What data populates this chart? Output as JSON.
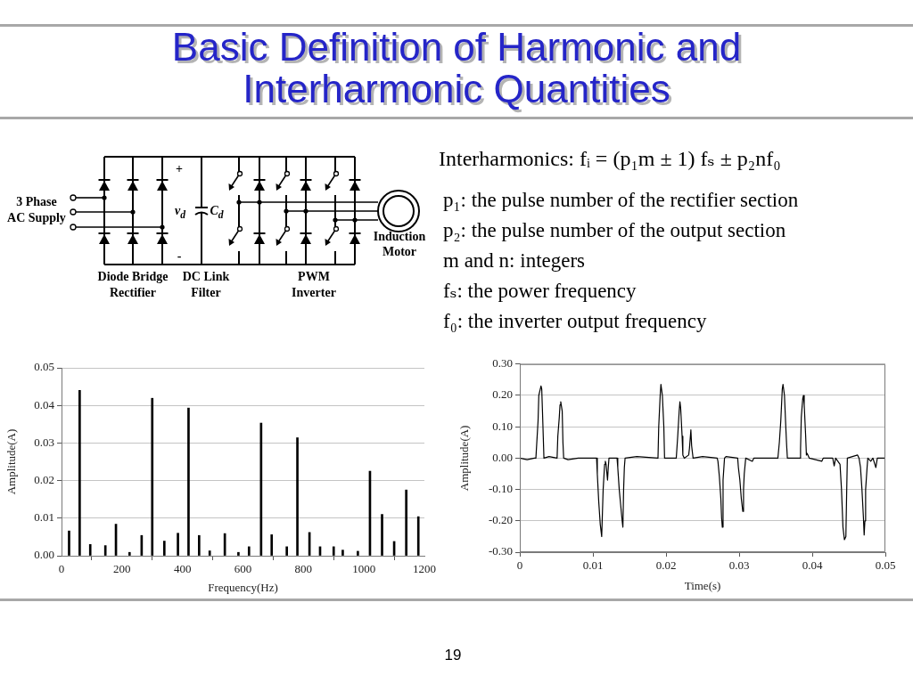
{
  "chart_data": [
    {
      "type": "other",
      "title": "Basic Definition of Harmonic and Interharmonic Quantities",
      "annotations": [
        "3 Phase AC Supply",
        "+",
        "-",
        "v$_{d}$",
        "C$_{d}$",
        "Diode Bridge Rectifier",
        "DC Link Filter",
        "PWM Inverter",
        "Induction Motor",
        "Interharmonics: fᵢ = (p₁m ± 1) fₛ ± p₂nf₀",
        "p₁: the pulse number of the rectifier section",
        "p₂: the pulse number of the output section",
        "m and n: integers",
        "fₛ: the power frequency",
        "f₀: the inverter output frequency",
        "19"
      ]
    },
    {
      "type": "bar",
      "x": [
        25,
        60,
        95,
        145,
        180,
        225,
        265,
        300,
        340,
        385,
        420,
        455,
        490,
        540,
        585,
        620,
        660,
        695,
        745,
        780,
        820,
        855,
        900,
        930,
        980,
        1020,
        1060,
        1100,
        1140,
        1180
      ],
      "values": [
        0.0066,
        0.044,
        0.003,
        0.0027,
        0.0084,
        0.0009,
        0.0054,
        0.0419,
        0.0039,
        0.006,
        0.0393,
        0.0054,
        0.0013,
        0.0059,
        0.0009,
        0.0024,
        0.0353,
        0.0056,
        0.0024,
        0.0314,
        0.0062,
        0.0024,
        0.0024,
        0.0015,
        0.0012,
        0.0225,
        0.011,
        0.0038,
        0.0175,
        0.0104
      ],
      "color": "#000000",
      "xlim": [
        0,
        1200
      ],
      "xticks": [
        0,
        200,
        400,
        600,
        800,
        1000,
        1200
      ],
      "ylim": [
        0,
        0.05
      ],
      "yticks": [
        {
          "value": 0,
          "label": "0.00"
        },
        0.01,
        0.02,
        0.03,
        0.04,
        0.05
      ],
      "xlabel": "Frequency(Hz)",
      "ylabel": "Amplitude(A)",
      "grid": "y"
    },
    {
      "type": "line",
      "x": [
        0,
        0.001,
        0.002,
        0.0022,
        0.0025,
        0.0026,
        0.0029,
        0.003,
        0.0031,
        0.0033,
        0.004,
        0.0051,
        0.0052,
        0.0054,
        0.0055,
        0.0056,
        0.0058,
        0.0059,
        0.006,
        0.0066,
        0.008,
        0.0105,
        0.0106,
        0.0108,
        0.011,
        0.0112,
        0.0114,
        0.0116,
        0.0117,
        0.0118,
        0.012,
        0.0121,
        0.0122,
        0.0133,
        0.0134,
        0.0136,
        0.0138,
        0.014,
        0.0141,
        0.0142,
        0.0143,
        0.0144,
        0.016,
        0.0189,
        0.019,
        0.0192,
        0.0193,
        0.0195,
        0.0197,
        0.0198,
        0.0214,
        0.0216,
        0.0218,
        0.0219,
        0.022,
        0.0222,
        0.0223,
        0.0225,
        0.0231,
        0.0232,
        0.0234,
        0.0235,
        0.0237,
        0.025,
        0.027,
        0.0271,
        0.0273,
        0.0275,
        0.0276,
        0.0277,
        0.0278,
        0.028,
        0.0282,
        0.0298,
        0.0299,
        0.0301,
        0.0303,
        0.0305,
        0.0306,
        0.0307,
        0.0309,
        0.0318,
        0.032,
        0.0353,
        0.0355,
        0.0357,
        0.0359,
        0.036,
        0.0362,
        0.0364,
        0.0365,
        0.0366,
        0.0383,
        0.0384,
        0.0385,
        0.0387,
        0.0388,
        0.0389,
        0.0391,
        0.0392,
        0.0393,
        0.0396,
        0.0413,
        0.0415,
        0.0428,
        0.043,
        0.0432,
        0.0438,
        0.044,
        0.0442,
        0.0444,
        0.0446,
        0.0447,
        0.0448,
        0.0462,
        0.0464,
        0.0466,
        0.0468,
        0.047,
        0.0471,
        0.0472,
        0.0473,
        0.0475,
        0.0476,
        0.048,
        0.0483,
        0.0487,
        0.0489,
        0.05
      ],
      "values": [
        0,
        -0.005,
        0,
        0,
        0.12,
        0.2,
        0.23,
        0.22,
        0.15,
        0,
        0.005,
        0,
        0.07,
        0.13,
        0.17,
        0.18,
        0.15,
        0.05,
        0,
        -0.005,
        0,
        0,
        -0.05,
        -0.14,
        -0.21,
        -0.25,
        -0.1,
        -0.02,
        -0.01,
        -0.02,
        -0.07,
        -0.03,
        0,
        0,
        -0.03,
        -0.1,
        -0.15,
        -0.2,
        -0.22,
        -0.1,
        -0.03,
        0,
        0.005,
        0,
        0.1,
        0.2,
        0.235,
        0.2,
        0.1,
        0,
        0,
        0.07,
        0.15,
        0.18,
        0.16,
        0.07,
        0.01,
        0,
        0.01,
        0.03,
        0.09,
        0.04,
        0,
        0.005,
        0,
        -0.01,
        -0.06,
        -0.13,
        -0.19,
        -0.22,
        -0.07,
        0,
        0.005,
        0,
        -0.03,
        -0.07,
        -0.13,
        -0.17,
        -0.1,
        -0.05,
        0,
        -0.01,
        0,
        0,
        0.05,
        0.12,
        0.22,
        0.235,
        0.2,
        0.09,
        0.04,
        0,
        0,
        0.03,
        0.13,
        0.19,
        0.2,
        0.17,
        0.07,
        0.01,
        0.015,
        0,
        -0.01,
        0,
        0,
        -0.025,
        0,
        -0.02,
        -0.1,
        -0.22,
        -0.26,
        -0.25,
        -0.12,
        0,
        0.01,
        0,
        -0.03,
        -0.1,
        -0.19,
        -0.245,
        -0.2,
        -0.1,
        -0.03,
        0,
        -0.01,
        0,
        -0.03,
        0,
        0
      ],
      "color": "#000000",
      "marker": "none",
      "xlim": [
        0,
        0.05
      ],
      "xticks": [
        0,
        0.01,
        0.02,
        0.03,
        0.04,
        0.05
      ],
      "ylim": [
        -0.3,
        0.3
      ],
      "yticks": [
        {
          "value": -0.3,
          "label": "-0.30"
        },
        {
          "value": -0.2,
          "label": "-0.20"
        },
        {
          "value": -0.1,
          "label": "-0.10"
        },
        {
          "value": 0,
          "label": "0.00"
        },
        {
          "value": 0.1,
          "label": "0.10"
        },
        {
          "value": 0.2,
          "label": "0.20"
        },
        {
          "value": 0.3,
          "label": "0.30"
        }
      ],
      "xlabel": "Time(s)",
      "ylabel": "Amplitude(A)",
      "grid": "y"
    }
  ]
}
